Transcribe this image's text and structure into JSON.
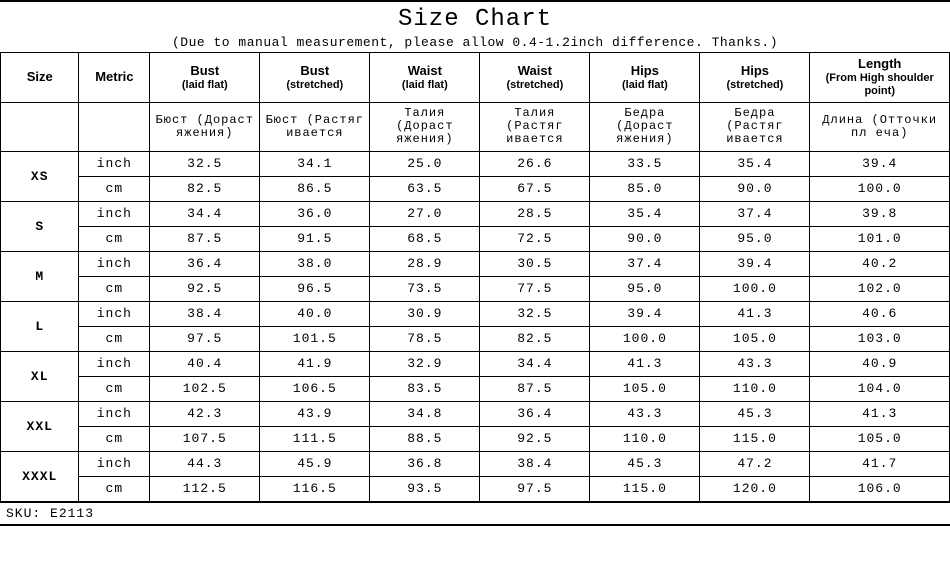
{
  "title": "Size Chart",
  "subtitle": "(Due to manual measurement, please allow 0.4-1.2inch difference. Thanks.)",
  "columns": {
    "size": "Size",
    "metric": "Metric",
    "bust_flat": {
      "main": "Bust",
      "sub": "(laid flat)"
    },
    "bust_stretch": {
      "main": "Bust",
      "sub": "(stretched)"
    },
    "waist_flat": {
      "main": "Waist",
      "sub": "(laid flat)"
    },
    "waist_stretch": {
      "main": "Waist",
      "sub": "(stretched)"
    },
    "hips_flat": {
      "main": "Hips",
      "sub": "(laid flat)"
    },
    "hips_stretch": {
      "main": "Hips",
      "sub": "(stretched)"
    },
    "length": {
      "main": "Length",
      "sub": "(From High shoulder point)"
    }
  },
  "ru_row": {
    "bust_flat": "Бюст (Дораст яжения)",
    "bust_stretch": "Бюст (Растяг ивается",
    "waist_flat": "Талия (Дораст яжения)",
    "waist_stretch": "Талия (Растяг ивается",
    "hips_flat": "Бедра (Дораст яжения)",
    "hips_stretch": "Бедра (Растяг ивается",
    "length": "Длина (Отточки пл еча)"
  },
  "metrics": {
    "inch": "inch",
    "cm": "cm"
  },
  "sizes": [
    {
      "label": "XS",
      "inch": [
        "32.5",
        "34.1",
        "25.0",
        "26.6",
        "33.5",
        "35.4",
        "39.4"
      ],
      "cm": [
        "82.5",
        "86.5",
        "63.5",
        "67.5",
        "85.0",
        "90.0",
        "100.0"
      ]
    },
    {
      "label": "S",
      "inch": [
        "34.4",
        "36.0",
        "27.0",
        "28.5",
        "35.4",
        "37.4",
        "39.8"
      ],
      "cm": [
        "87.5",
        "91.5",
        "68.5",
        "72.5",
        "90.0",
        "95.0",
        "101.0"
      ]
    },
    {
      "label": "M",
      "inch": [
        "36.4",
        "38.0",
        "28.9",
        "30.5",
        "37.4",
        "39.4",
        "40.2"
      ],
      "cm": [
        "92.5",
        "96.5",
        "73.5",
        "77.5",
        "95.0",
        "100.0",
        "102.0"
      ]
    },
    {
      "label": "L",
      "inch": [
        "38.4",
        "40.0",
        "30.9",
        "32.5",
        "39.4",
        "41.3",
        "40.6"
      ],
      "cm": [
        "97.5",
        "101.5",
        "78.5",
        "82.5",
        "100.0",
        "105.0",
        "103.0"
      ]
    },
    {
      "label": "XL",
      "inch": [
        "40.4",
        "41.9",
        "32.9",
        "34.4",
        "41.3",
        "43.3",
        "40.9"
      ],
      "cm": [
        "102.5",
        "106.5",
        "83.5",
        "87.5",
        "105.0",
        "110.0",
        "104.0"
      ]
    },
    {
      "label": "XXL",
      "inch": [
        "42.3",
        "43.9",
        "34.8",
        "36.4",
        "43.3",
        "45.3",
        "41.3"
      ],
      "cm": [
        "107.5",
        "111.5",
        "88.5",
        "92.5",
        "110.0",
        "115.0",
        "105.0"
      ]
    },
    {
      "label": "XXXL",
      "inch": [
        "44.3",
        "45.9",
        "36.8",
        "38.4",
        "45.3",
        "47.2",
        "41.7"
      ],
      "cm": [
        "112.5",
        "116.5",
        "93.5",
        "97.5",
        "115.0",
        "120.0",
        "106.0"
      ]
    }
  ],
  "sku_label": "SKU:",
  "sku_value": "E2113",
  "style": {
    "background": "#ffffff",
    "border_color": "#000000",
    "title_fontsize": 24,
    "subtitle_fontsize": 13,
    "header_fontsize": 13,
    "cell_fontsize": 13,
    "ru_fontsize": 12,
    "font_mono": "Courier New",
    "font_sans": "Arial"
  }
}
